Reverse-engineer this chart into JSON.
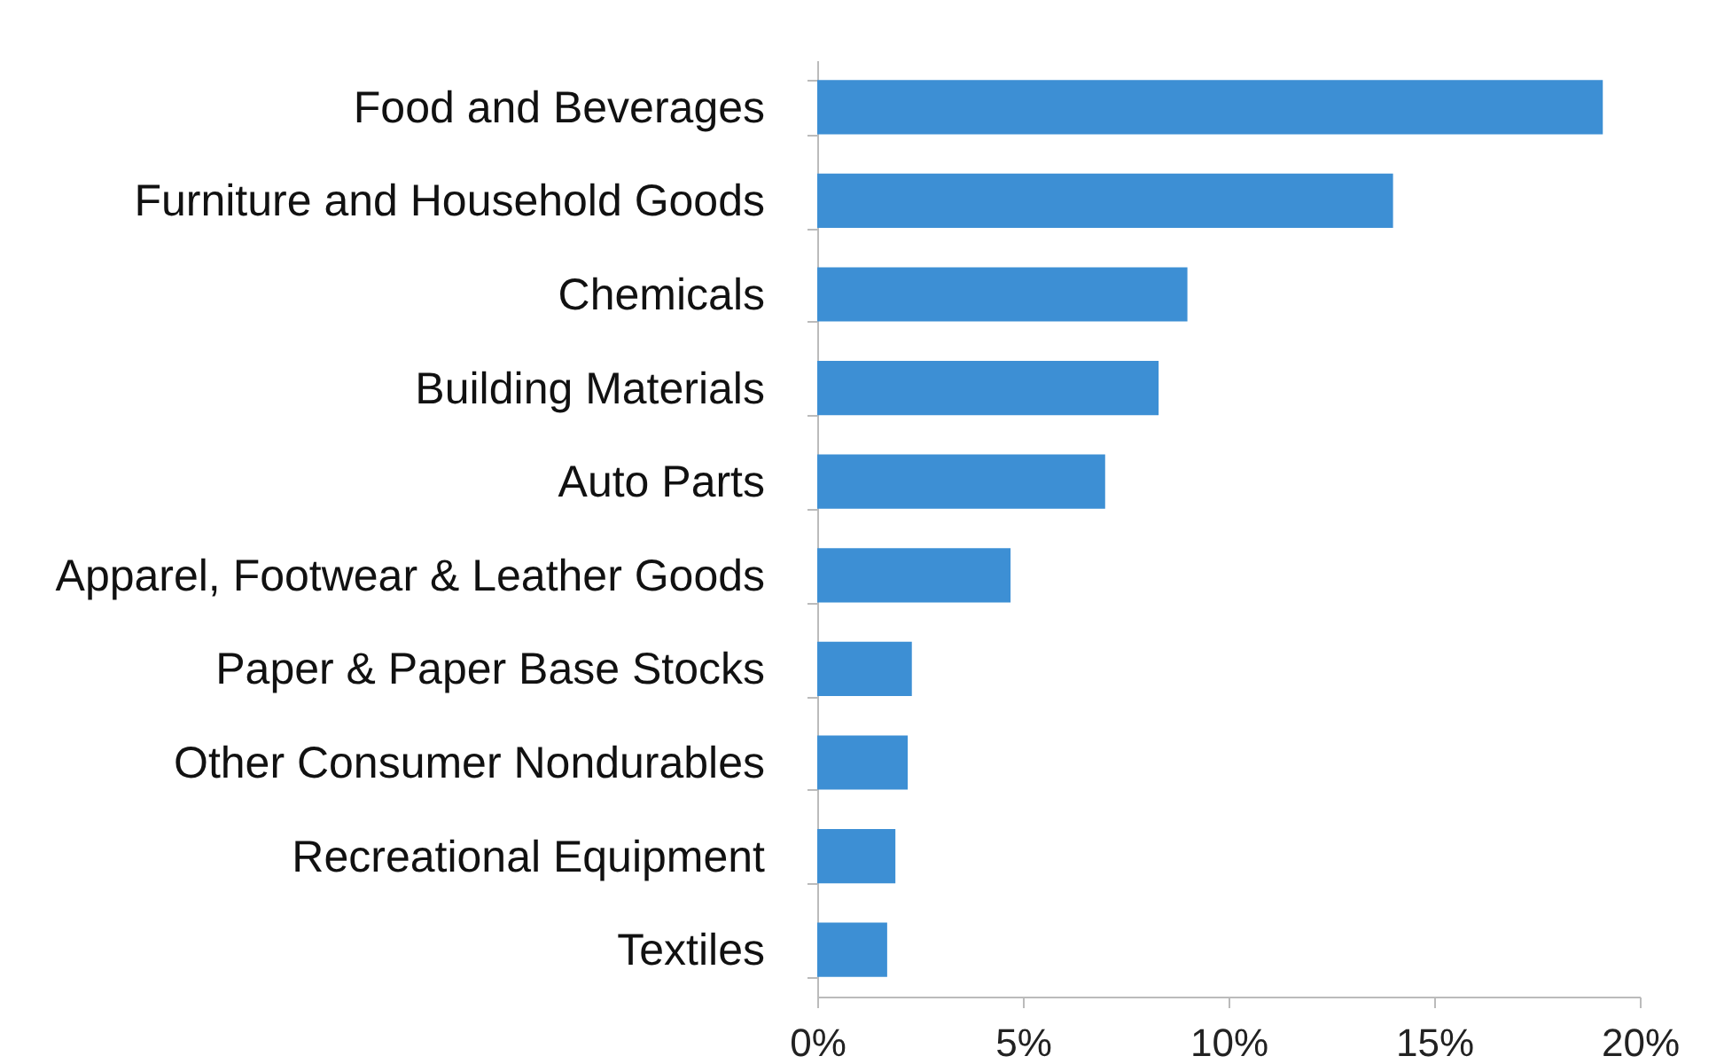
{
  "chart_data": {
    "type": "bar",
    "orientation": "horizontal",
    "categories": [
      "Food and Beverages",
      "Furniture and Household Goods",
      "Chemicals",
      "Building Materials",
      "Auto Parts",
      "Apparel, Footwear & Leather Goods",
      "Paper & Paper Base Stocks",
      "Other Consumer Nondurables",
      "Recreational Equipment",
      "Textiles"
    ],
    "values": [
      19.1,
      14.0,
      9.0,
      8.3,
      7.0,
      4.7,
      2.3,
      2.2,
      1.9,
      1.7
    ],
    "color": "#3d8fd4",
    "xlim": [
      0,
      20
    ],
    "xticks": [
      {
        "value": 0,
        "label": "0%"
      },
      {
        "value": 5,
        "label": "5%"
      },
      {
        "value": 10,
        "label": "10%"
      },
      {
        "value": 15,
        "label": "15%"
      },
      {
        "value": 20,
        "label": "20%"
      }
    ],
    "grid": false
  }
}
